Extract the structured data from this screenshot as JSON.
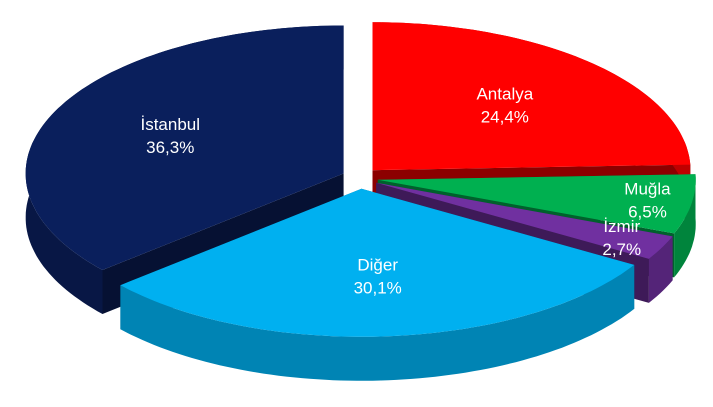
{
  "chart_data": {
    "type": "pie",
    "categories": [
      "Antalya",
      "Muğla",
      "İzmir",
      "Diğer",
      "İstanbul"
    ],
    "values": [
      24.4,
      6.5,
      2.7,
      30.1,
      36.3
    ],
    "value_labels": [
      "24,4%",
      "6,5%",
      "2,7%",
      "30,1%",
      "36,3%"
    ],
    "colors": [
      "#ff0000",
      "#00b050",
      "#7030a0",
      "#00b0f0",
      "#0a1f5c"
    ]
  }
}
